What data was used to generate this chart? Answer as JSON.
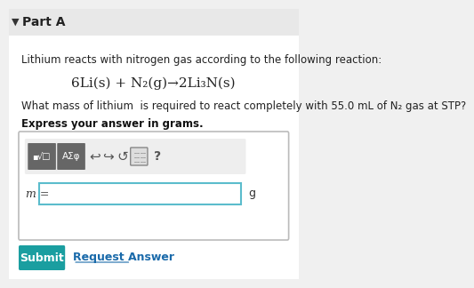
{
  "bg_color": "#f5f5f5",
  "title_text": "Part A",
  "line1": "Lithium reacts with nitrogen gas according to the following reaction:",
  "equation": "6Li(s) + N₂(g)→2Li₃N(s)",
  "question": "What mass of lithium  is required to react completely with 55.0 mL of N₂ gas at STP?",
  "bold_text": "Express your answer in grams.",
  "m_label": "m =",
  "g_label": "g",
  "submit_text": "Submit",
  "submit_color": "#1a9ea0",
  "request_text": "Request Answer",
  "request_color": "#1a6aaa",
  "toolbar_bg": "#e0e0e0",
  "toolbar_dark": "#555555",
  "input_border": "#5bbccc",
  "outer_box_color": "#cccccc"
}
